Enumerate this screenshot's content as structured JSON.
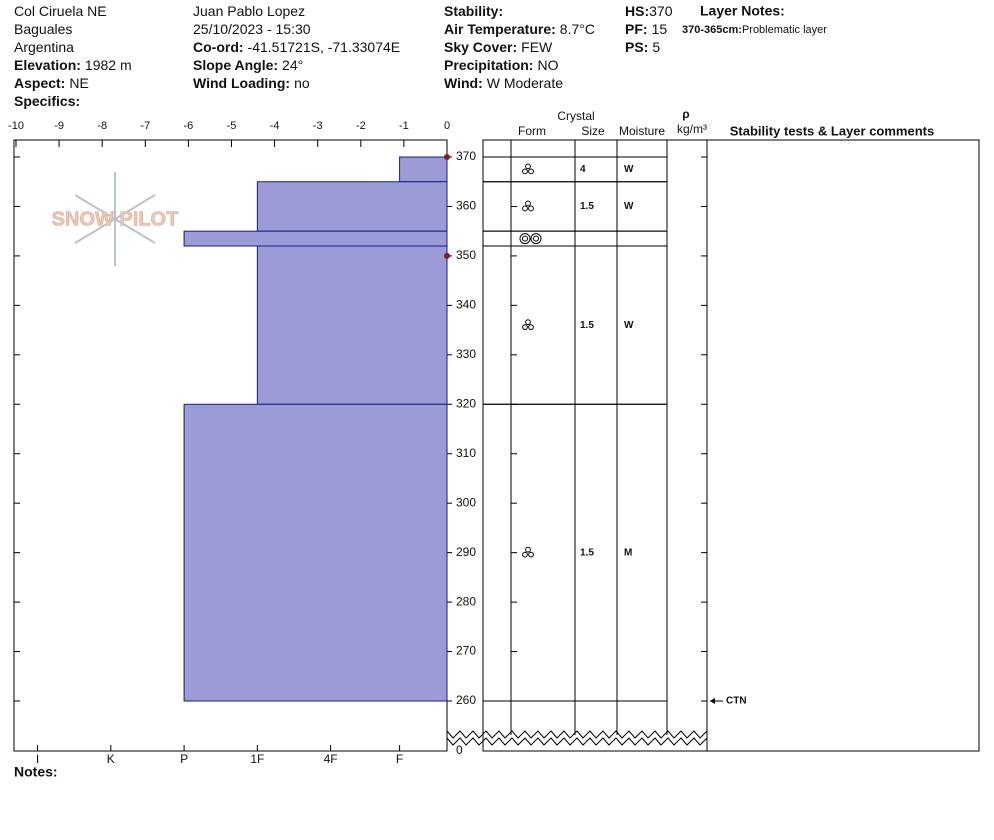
{
  "header": {
    "columns": [
      [
        {
          "text": "Col Ciruela NE"
        },
        {
          "text": "Baguales"
        },
        {
          "text": "Argentina"
        },
        {
          "label": "Elevation:",
          "value": "1982 m"
        },
        {
          "label": "Aspect:",
          "value": "NE"
        },
        {
          "label": "Specifics:"
        }
      ],
      [
        {
          "text": "Juan Pablo  Lopez"
        },
        {
          "text": "25/10/2023 - 15:30"
        },
        {
          "label": "Co-ord:",
          "value": "-41.51721S, -71.33074E"
        },
        {
          "label": "Slope Angle:",
          "value": "24°"
        },
        {
          "label": "Wind Loading:",
          "value": "no"
        }
      ],
      [
        {
          "label": "Stability:"
        },
        {
          "label": "Air Temperature:",
          "value": "8.7°C"
        },
        {
          "label": "Sky Cover:",
          "value": "FEW"
        },
        {
          "label": "Precipitation:",
          "value": "NO"
        },
        {
          "label": "Wind:",
          "value": "W Moderate"
        }
      ],
      [
        {
          "label": "HS:",
          "value": "370"
        },
        {
          "label": "PF:",
          "value": "15"
        },
        {
          "label": "PS:",
          "value": "5"
        }
      ]
    ],
    "layer_notes": {
      "title": "Layer Notes:",
      "entries": [
        {
          "range": "370-365cm:",
          "text": "Problematic layer"
        }
      ]
    }
  },
  "logo": "SNOW PILOT",
  "table": {
    "headers": {
      "crystal": "Crystal",
      "form": "Form",
      "size": "Size",
      "moisture": "Moisture",
      "rho": "ρ",
      "density_unit": "kg/m³",
      "comments": "Stability tests & Layer comments"
    }
  },
  "chart_data": {
    "type": "bar",
    "orientation": "horizontal",
    "xlim": [
      -10,
      0
    ],
    "xticks": [
      -10,
      -9,
      -8,
      -7,
      -6,
      -5,
      -4,
      -3,
      -2,
      -1,
      0
    ],
    "x2ticks": [
      {
        "value": -9.5,
        "label": "I"
      },
      {
        "value": -7.8,
        "label": "K"
      },
      {
        "value": -6.1,
        "label": "P"
      },
      {
        "value": -4.4,
        "label": "1F"
      },
      {
        "value": -2.7,
        "label": "4F"
      },
      {
        "value": -1.1,
        "label": "F"
      }
    ],
    "ylim": [
      260,
      370
    ],
    "yticks": [
      260,
      270,
      280,
      290,
      300,
      310,
      320,
      330,
      340,
      350,
      360,
      370
    ],
    "axis_break_tick": 0,
    "color": "#9b9bd6",
    "edge_color": "#1a1a8c",
    "layers": [
      {
        "top": 370,
        "bottom": 365,
        "hardness": -1.1,
        "size": 4,
        "moisture": "W"
      },
      {
        "top": 365,
        "bottom": 355,
        "hardness": -4.4,
        "size": 1.5,
        "moisture": "W"
      },
      {
        "top": 355,
        "bottom": 352,
        "hardness": -6.1
      },
      {
        "top": 352,
        "bottom": 320,
        "hardness": -4.4,
        "size": 1.5,
        "moisture": "W"
      },
      {
        "top": 320,
        "bottom": 260,
        "hardness": -6.1,
        "size": 1.5,
        "moisture": "M"
      }
    ],
    "markers": [
      370,
      350
    ],
    "marker_color": "#8b1a1a",
    "annotations": [
      {
        "depth": 260,
        "label": "CTN"
      }
    ],
    "notes_label": "Notes:"
  }
}
